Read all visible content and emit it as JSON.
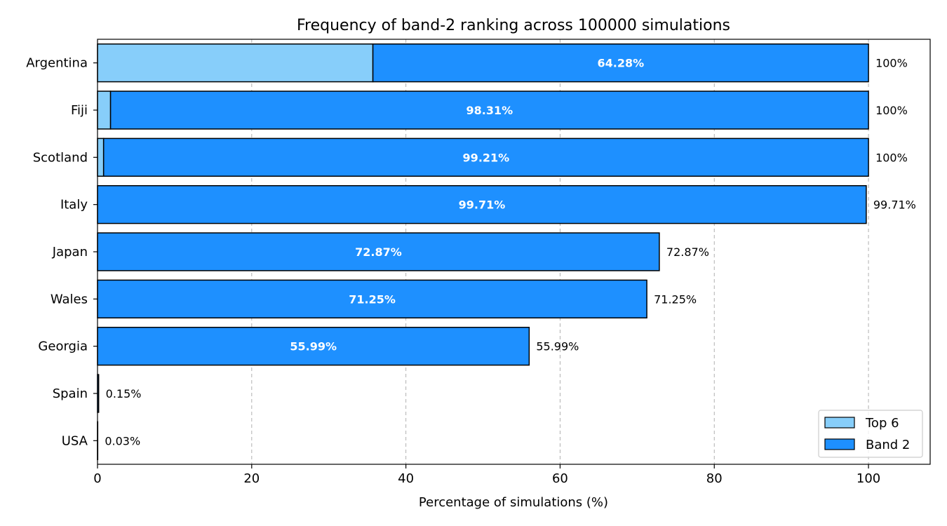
{
  "chart_data": {
    "type": "bar",
    "orientation": "horizontal",
    "stacked": true,
    "title": "Frequency of band-2 ranking across 100000 simulations",
    "xlabel": "Percentage of simulations (%)",
    "ylabel": "",
    "xlim": [
      0,
      108
    ],
    "xticks": [
      0,
      20,
      40,
      60,
      80,
      100
    ],
    "grid": "x-dashed",
    "legend_position": "bottom-right",
    "categories": [
      "Argentina",
      "Fiji",
      "Scotland",
      "Italy",
      "Japan",
      "Wales",
      "Georgia",
      "Spain",
      "USA"
    ],
    "series": [
      {
        "name": "Top 6",
        "color": "#87cefa",
        "values": [
          35.72,
          1.69,
          0.79,
          0,
          0,
          0,
          0,
          0,
          0
        ]
      },
      {
        "name": "Band 2",
        "color": "#1e90ff",
        "values": [
          64.28,
          98.31,
          99.21,
          99.71,
          72.87,
          71.25,
          55.99,
          0.15,
          0.03
        ]
      }
    ],
    "band2_labels": [
      "64.28%",
      "98.31%",
      "99.21%",
      "99.71%",
      "72.87%",
      "71.25%",
      "55.99%",
      "",
      ""
    ],
    "total_labels": [
      "100%",
      "100%",
      "100%",
      "99.71%",
      "72.87%",
      "71.25%",
      "55.99%",
      "0.15%",
      "0.03%"
    ]
  }
}
